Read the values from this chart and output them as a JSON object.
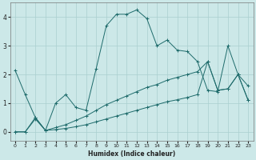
{
  "xlabel": "Humidex (Indice chaleur)",
  "ylabel": "",
  "bg_color": "#cce8e8",
  "grid_color": "#aacfcf",
  "line_color": "#1e6b6b",
  "x_min": -0.5,
  "x_max": 23.5,
  "y_min": -0.3,
  "y_max": 4.5,
  "x_ticks": [
    0,
    1,
    2,
    3,
    4,
    5,
    6,
    7,
    8,
    9,
    10,
    11,
    12,
    13,
    14,
    15,
    16,
    17,
    18,
    19,
    20,
    21,
    22,
    23
  ],
  "y_ticks": [
    0,
    1,
    2,
    3,
    4
  ],
  "series1_x": [
    0,
    1,
    2,
    3,
    4,
    5,
    6,
    7,
    8,
    9,
    10,
    11,
    12,
    13,
    14,
    15,
    16,
    17,
    18,
    19,
    20,
    21,
    22,
    23
  ],
  "series1_y": [
    2.15,
    1.3,
    0.5,
    0.05,
    1.0,
    1.3,
    0.85,
    0.75,
    2.2,
    3.7,
    4.1,
    4.1,
    4.25,
    3.95,
    3.0,
    3.2,
    2.85,
    2.8,
    2.45,
    1.45,
    1.4,
    3.0,
    2.0,
    1.6
  ],
  "series2_x": [
    0,
    1,
    2,
    3,
    4,
    5,
    6,
    7,
    8,
    9,
    10,
    11,
    12,
    13,
    14,
    15,
    16,
    17,
    18,
    19,
    20,
    21,
    22,
    23
  ],
  "series2_y": [
    0.0,
    0.0,
    0.5,
    0.05,
    0.15,
    0.25,
    0.4,
    0.55,
    0.75,
    0.95,
    1.1,
    1.25,
    1.4,
    1.55,
    1.65,
    1.8,
    1.9,
    2.0,
    2.1,
    2.45,
    1.45,
    1.5,
    2.0,
    1.1
  ],
  "series3_x": [
    0,
    1,
    2,
    3,
    4,
    5,
    6,
    7,
    8,
    9,
    10,
    11,
    12,
    13,
    14,
    15,
    16,
    17,
    18,
    19,
    20,
    21,
    22,
    23
  ],
  "series3_y": [
    0.0,
    0.0,
    0.45,
    0.05,
    0.08,
    0.12,
    0.18,
    0.25,
    0.35,
    0.45,
    0.55,
    0.65,
    0.75,
    0.85,
    0.95,
    1.05,
    1.12,
    1.2,
    1.3,
    2.45,
    1.45,
    1.5,
    2.0,
    1.1
  ]
}
